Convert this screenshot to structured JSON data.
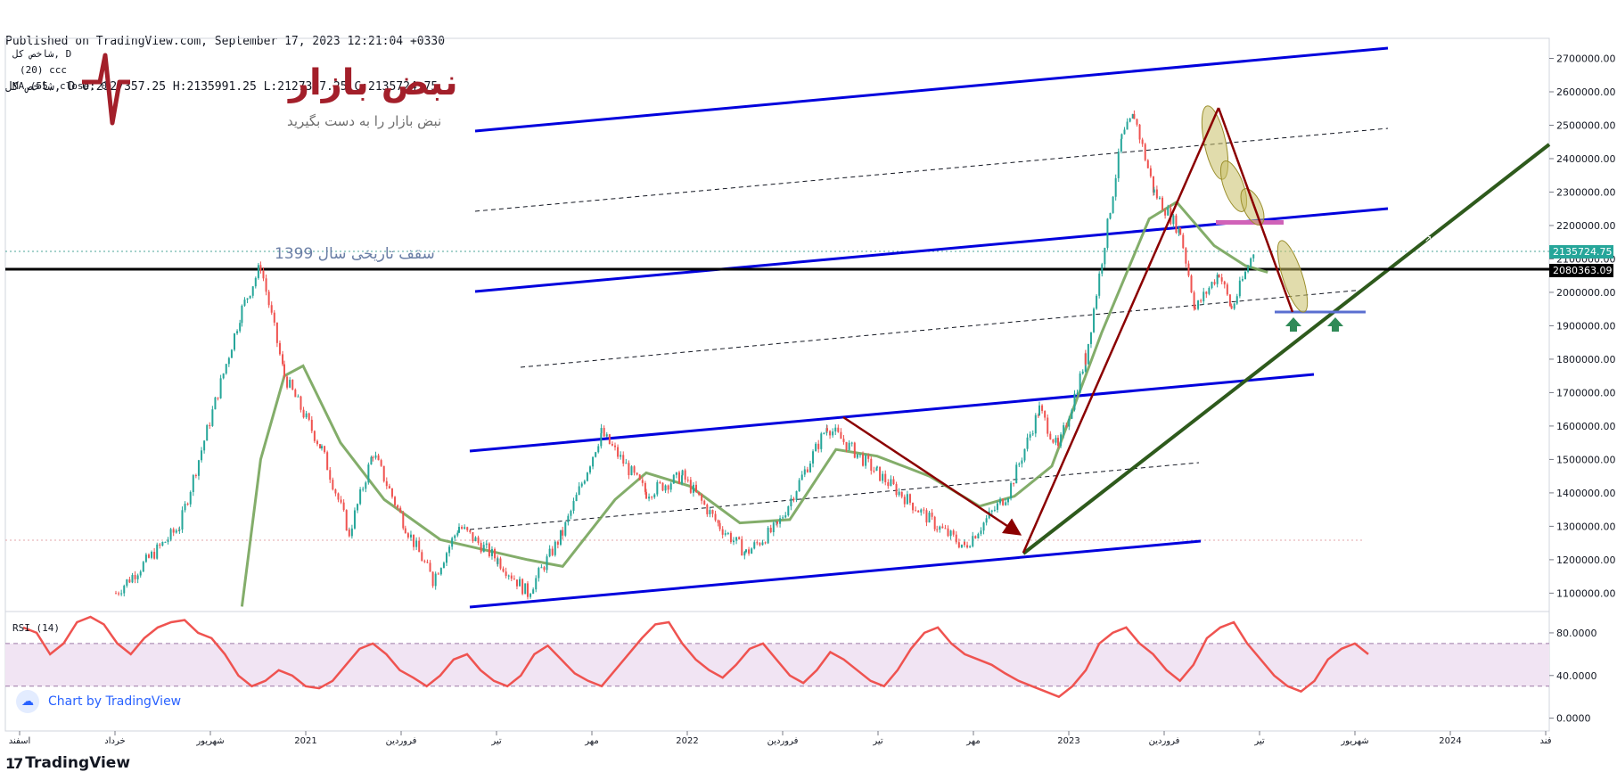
{
  "header": {
    "published": "Published on TradingView.com, September 17, 2023 12:21:04 +0330",
    "ohlc": "شاخص کل, D O:2127357.25 H:2135991.25 L:2127357.25 C:2135724.75"
  },
  "legend": {
    "symbol": "شاخص کل, D",
    "bb": "(20) ccc",
    "ma": "MA (55, close, 0)"
  },
  "logo": {
    "name": "نبض بازار",
    "slogan": "نبض بازار را به دست بگیرید",
    "color": "#a31f2a"
  },
  "annotation": {
    "text": "سقف تاریخی سال 1399"
  },
  "price_labels": {
    "last": "2135724.75",
    "level": "2080363.09"
  },
  "rsi": {
    "label": "RSI (14)",
    "upper": 70,
    "lower": 30
  },
  "footer": {
    "badge": "Chart by TradingView",
    "brand": "TradingView"
  },
  "colors": {
    "up": "#26a69a",
    "down": "#ef5350",
    "channel": "#0000dd",
    "trend": "#2e5a1c",
    "ma": "#76a45a",
    "arrow": "#8b0000",
    "rsi": "#ef5350",
    "rsi_band": "#f1e4f3"
  },
  "chart_data": [
    {
      "type": "candlestick",
      "title": "شاخص کل, D",
      "x_ticks": [
        "اسفند",
        "خرداد",
        "شهریور",
        "2021",
        "فروردین",
        "تیر",
        "مهر",
        "2022",
        "فروردین",
        "تیر",
        "مهر",
        "2023",
        "فروردین",
        "تیر",
        "شهریور",
        "2024",
        "فند"
      ],
      "y_ticks": [
        1100000,
        1200000,
        1300000,
        1400000,
        1500000,
        1600000,
        1700000,
        1800000,
        1900000,
        2000000,
        2100000,
        2200000,
        2300000,
        2400000,
        2500000,
        2600000,
        2700000
      ],
      "ylim": [
        1045000,
        2760000
      ],
      "xlim": [
        0,
        100
      ],
      "key_points": [
        {
          "x": 0,
          "y": 1100000
        },
        {
          "x": 5.1,
          "y": 1300000
        },
        {
          "x": 10.1,
          "y": 1950000
        },
        {
          "x": 11.6,
          "y": 2080000
        },
        {
          "x": 13.5,
          "y": 1750000
        },
        {
          "x": 16.5,
          "y": 1530000
        },
        {
          "x": 18.7,
          "y": 1280000
        },
        {
          "x": 20.6,
          "y": 1520000
        },
        {
          "x": 23.2,
          "y": 1300000
        },
        {
          "x": 25.4,
          "y": 1140000
        },
        {
          "x": 27.5,
          "y": 1300000
        },
        {
          "x": 30.6,
          "y": 1200000
        },
        {
          "x": 33.0,
          "y": 1100000
        },
        {
          "x": 35.8,
          "y": 1280000
        },
        {
          "x": 38.9,
          "y": 1580000
        },
        {
          "x": 42.5,
          "y": 1400000
        },
        {
          "x": 45.4,
          "y": 1450000
        },
        {
          "x": 48.4,
          "y": 1300000
        },
        {
          "x": 50.5,
          "y": 1220000
        },
        {
          "x": 53.0,
          "y": 1300000
        },
        {
          "x": 57.0,
          "y": 1600000
        },
        {
          "x": 61.0,
          "y": 1460000
        },
        {
          "x": 65.8,
          "y": 1300000
        },
        {
          "x": 68.0,
          "y": 1240000
        },
        {
          "x": 71.5,
          "y": 1400000
        },
        {
          "x": 74.0,
          "y": 1650000
        },
        {
          "x": 75.5,
          "y": 1530000
        },
        {
          "x": 77.7,
          "y": 1800000
        },
        {
          "x": 80.6,
          "y": 2460000
        },
        {
          "x": 81.6,
          "y": 2530000
        },
        {
          "x": 83.2,
          "y": 2300000
        },
        {
          "x": 85.3,
          "y": 2180000
        },
        {
          "x": 86.5,
          "y": 1950000
        },
        {
          "x": 88.4,
          "y": 2060000
        },
        {
          "x": 89.4,
          "y": 1950000
        },
        {
          "x": 91.3,
          "y": 2135724.75
        }
      ],
      "ma_points": [
        {
          "x": 10.1,
          "y": 1060000
        },
        {
          "x": 11.6,
          "y": 1500000
        },
        {
          "x": 13.5,
          "y": 1750000
        },
        {
          "x": 15.0,
          "y": 1780000
        },
        {
          "x": 18.0,
          "y": 1550000
        },
        {
          "x": 21.5,
          "y": 1380000
        },
        {
          "x": 26.0,
          "y": 1260000
        },
        {
          "x": 33.0,
          "y": 1200000
        },
        {
          "x": 35.8,
          "y": 1180000
        },
        {
          "x": 40.0,
          "y": 1380000
        },
        {
          "x": 42.5,
          "y": 1460000
        },
        {
          "x": 46.0,
          "y": 1420000
        },
        {
          "x": 50.0,
          "y": 1310000
        },
        {
          "x": 54.0,
          "y": 1320000
        },
        {
          "x": 57.7,
          "y": 1530000
        },
        {
          "x": 61.0,
          "y": 1510000
        },
        {
          "x": 65.2,
          "y": 1450000
        },
        {
          "x": 69.2,
          "y": 1360000
        },
        {
          "x": 72.0,
          "y": 1390000
        },
        {
          "x": 75.0,
          "y": 1480000
        },
        {
          "x": 79.0,
          "y": 1880000
        },
        {
          "x": 82.8,
          "y": 2220000
        },
        {
          "x": 85.0,
          "y": 2270000
        },
        {
          "x": 88.0,
          "y": 2140000
        },
        {
          "x": 90.5,
          "y": 2080000
        },
        {
          "x": 92.3,
          "y": 2060000
        }
      ],
      "horizontal_level": 2080363.09,
      "last_price": 2135724.75
    },
    {
      "type": "line",
      "title": "RSI (14)",
      "y_ticks": [
        0,
        40,
        80
      ],
      "ylim": [
        -12,
        100
      ],
      "bands": [
        30,
        70
      ],
      "values": [
        85,
        80,
        60,
        70,
        90,
        95,
        88,
        70,
        60,
        75,
        85,
        90,
        92,
        80,
        75,
        60,
        40,
        30,
        35,
        45,
        40,
        30,
        28,
        35,
        50,
        65,
        70,
        60,
        45,
        38,
        30,
        40,
        55,
        60,
        45,
        35,
        30,
        40,
        60,
        68,
        55,
        42,
        35,
        30,
        45,
        60,
        75,
        88,
        90,
        70,
        55,
        45,
        38,
        50,
        65,
        70,
        55,
        40,
        33,
        45,
        62,
        55,
        45,
        35,
        30,
        45,
        65,
        80,
        85,
        70,
        60,
        55,
        50,
        42,
        35,
        30,
        25,
        20,
        30,
        45,
        70,
        80,
        85,
        70,
        60,
        45,
        35,
        50,
        75,
        85,
        90,
        70,
        55,
        40,
        30,
        25,
        35,
        55,
        65,
        70,
        60
      ]
    }
  ]
}
